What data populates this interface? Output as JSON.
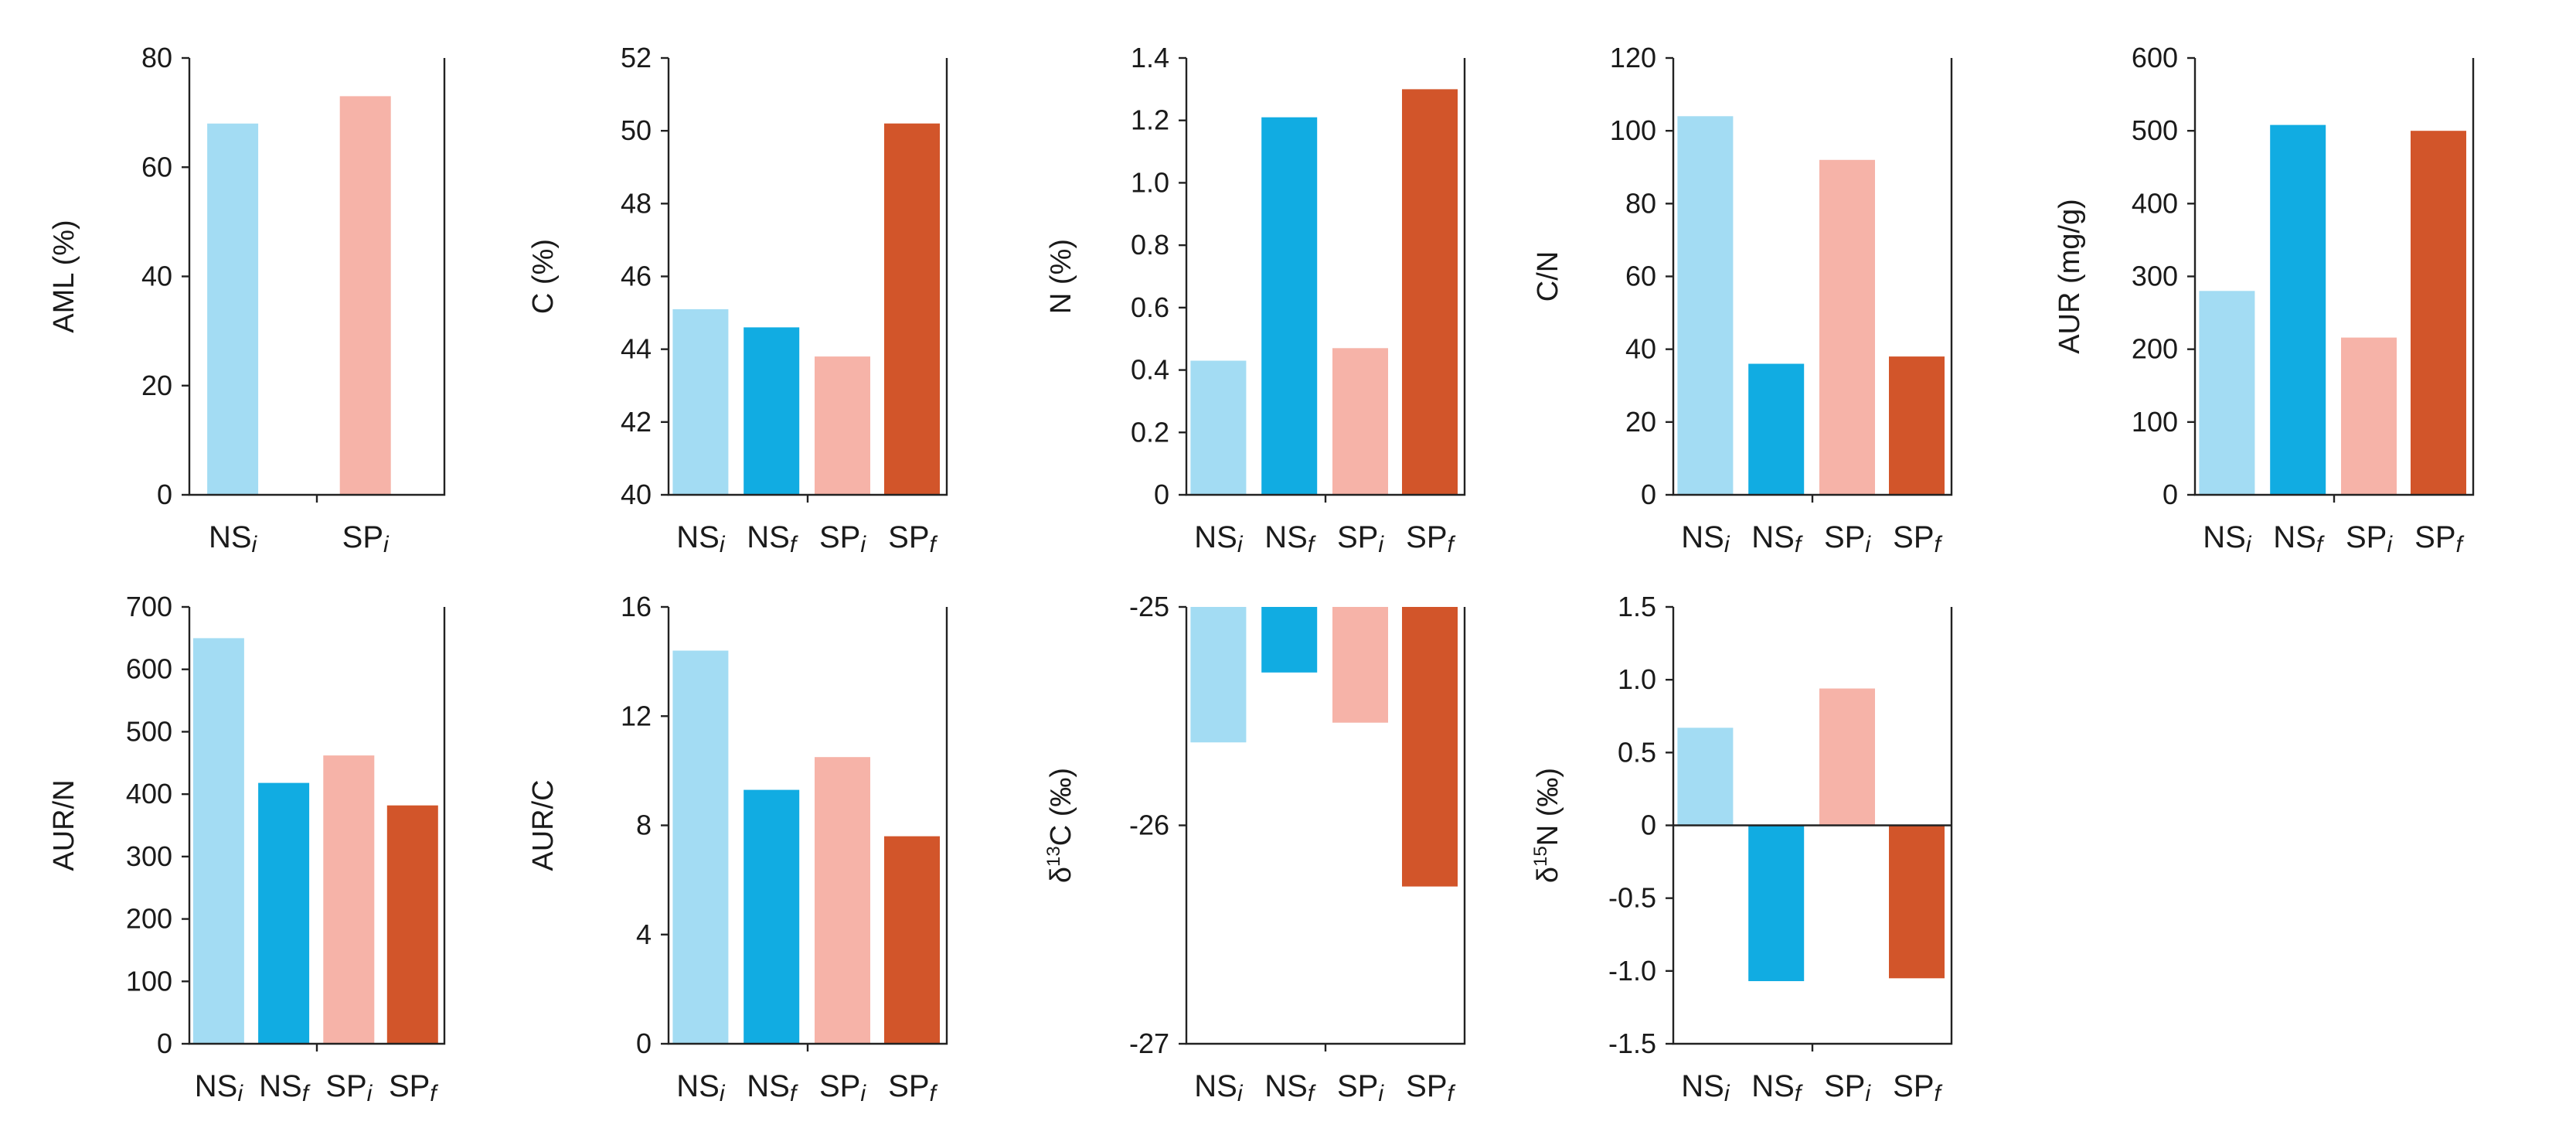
{
  "figure": {
    "colors": {
      "NSi": "#a3dcf3",
      "NSf": "#11ace2",
      "SPi": "#f6b3a8",
      "SPf": "#d2552a"
    },
    "categories": [
      {
        "key": "NSi",
        "main": "NS",
        "sub": "i"
      },
      {
        "key": "NSf",
        "main": "NS",
        "sub": "f"
      },
      {
        "key": "SPi",
        "main": "SP",
        "sub": "i"
      },
      {
        "key": "SPf",
        "main": "SP",
        "sub": "f"
      }
    ]
  },
  "chart_data": [
    {
      "type": "bar",
      "id": "aml",
      "ylabel": "AML (%)",
      "categories": [
        "NSi",
        "SPi"
      ],
      "values": [
        68,
        73
      ],
      "ylim": [
        0,
        80
      ],
      "yticks": [
        0,
        20,
        40,
        60,
        80
      ],
      "ytick_labels": [
        "0",
        "20",
        "40",
        "60",
        "80"
      ]
    },
    {
      "type": "bar",
      "id": "c",
      "ylabel": "C (%)",
      "categories": [
        "NSi",
        "NSf",
        "SPi",
        "SPf"
      ],
      "values": [
        45.1,
        44.6,
        43.8,
        50.2
      ],
      "ylim": [
        40,
        52
      ],
      "yticks": [
        40,
        42,
        44,
        46,
        48,
        50,
        52
      ],
      "ytick_labels": [
        "40",
        "42",
        "44",
        "46",
        "48",
        "50",
        "52"
      ]
    },
    {
      "type": "bar",
      "id": "n",
      "ylabel": "N (%)",
      "categories": [
        "NSi",
        "NSf",
        "SPi",
        "SPf"
      ],
      "values": [
        0.43,
        1.21,
        0.47,
        1.3
      ],
      "ylim": [
        0,
        1.4
      ],
      "yticks": [
        0,
        0.2,
        0.4,
        0.6,
        0.8,
        1.0,
        1.2,
        1.4
      ],
      "ytick_labels": [
        "0",
        "0.2",
        "0.4",
        "0.6",
        "0.8",
        "1.0",
        "1.2",
        "1.4"
      ]
    },
    {
      "type": "bar",
      "id": "cn",
      "ylabel": "C/N",
      "categories": [
        "NSi",
        "NSf",
        "SPi",
        "SPf"
      ],
      "values": [
        104,
        36,
        92,
        38
      ],
      "ylim": [
        0,
        120
      ],
      "yticks": [
        0,
        20,
        40,
        60,
        80,
        100,
        120
      ],
      "ytick_labels": [
        "0",
        "20",
        "40",
        "60",
        "80",
        "100",
        "120"
      ]
    },
    {
      "type": "bar",
      "id": "aur",
      "ylabel": "AUR (mg/g)",
      "categories": [
        "NSi",
        "NSf",
        "SPi",
        "SPf"
      ],
      "values": [
        280,
        508,
        216,
        500
      ],
      "ylim": [
        0,
        600
      ],
      "yticks": [
        0,
        100,
        200,
        300,
        400,
        500,
        600
      ],
      "ytick_labels": [
        "0",
        "100",
        "200",
        "300",
        "400",
        "500",
        "600"
      ]
    },
    {
      "type": "bar",
      "id": "aurn",
      "ylabel": "AUR/N",
      "categories": [
        "NSi",
        "NSf",
        "SPi",
        "SPf"
      ],
      "values": [
        650,
        418,
        462,
        382
      ],
      "ylim": [
        0,
        700
      ],
      "yticks": [
        0,
        100,
        200,
        300,
        400,
        500,
        600,
        700
      ],
      "ytick_labels": [
        "0",
        "100",
        "200",
        "300",
        "400",
        "500",
        "600",
        "700"
      ]
    },
    {
      "type": "bar",
      "id": "aurc",
      "ylabel": "AUR/C",
      "categories": [
        "NSi",
        "NSf",
        "SPi",
        "SPf"
      ],
      "values": [
        14.4,
        9.3,
        10.5,
        7.6
      ],
      "ylim": [
        0,
        16
      ],
      "yticks": [
        0,
        4,
        8,
        12,
        16
      ],
      "ytick_labels": [
        "0",
        "4",
        "8",
        "12",
        "16"
      ]
    },
    {
      "type": "bar",
      "id": "d13c",
      "ylabel": {
        "pre": "δ",
        "sup": "13",
        "post": "C (‰)"
      },
      "categories": [
        "NSi",
        "NSf",
        "SPi",
        "SPf"
      ],
      "values": [
        -25.62,
        -25.3,
        -25.53,
        -26.28
      ],
      "ylim": [
        -27,
        -25
      ],
      "baseline": -25,
      "yticks": [
        -27,
        -26,
        -25
      ],
      "ytick_labels": [
        "-27",
        "-26",
        "-25"
      ]
    },
    {
      "type": "bar",
      "id": "d15n",
      "ylabel": {
        "pre": "δ",
        "sup": "15",
        "post": "N (‰)"
      },
      "categories": [
        "NSi",
        "NSf",
        "SPi",
        "SPf"
      ],
      "values": [
        0.67,
        -1.07,
        0.94,
        -1.05
      ],
      "ylim": [
        -1.5,
        1.5
      ],
      "baseline": 0,
      "yticks": [
        -1.5,
        -1.0,
        -0.5,
        0,
        0.5,
        1.0,
        1.5
      ],
      "ytick_labels": [
        "-1.5",
        "-1.0",
        "-0.5",
        "0",
        "0.5",
        "1.0",
        "1.5"
      ]
    }
  ]
}
